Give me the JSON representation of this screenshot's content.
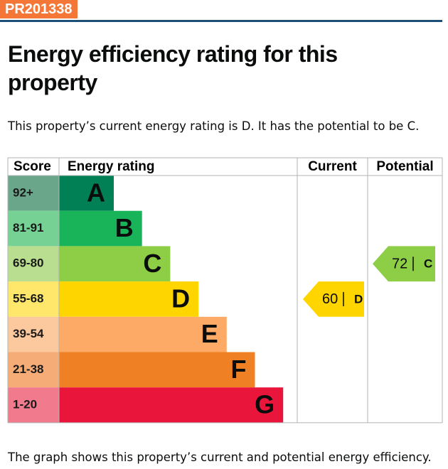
{
  "chart_data": {
    "type": "epc",
    "reference": "PR201338",
    "title": "Energy efficiency rating for this property",
    "subtitle": "This property’s current energy rating is D. It has the potential to be C.",
    "columns": [
      "Score",
      "Energy rating",
      "Current",
      "Potential"
    ],
    "bands": [
      {
        "score": "92+",
        "letter": "A",
        "color": "#008054",
        "score_color": "#6aa78a"
      },
      {
        "score": "81-91",
        "letter": "B",
        "color": "#19b459",
        "score_color": "#75d194"
      },
      {
        "score": "69-80",
        "letter": "C",
        "color": "#8dce46",
        "score_color": "#b9de8f"
      },
      {
        "score": "55-68",
        "letter": "D",
        "color": "#ffd500",
        "score_color": "#fee76b"
      },
      {
        "score": "39-54",
        "letter": "E",
        "color": "#fcaa65",
        "score_color": "#fcc89e"
      },
      {
        "score": "21-38",
        "letter": "F",
        "color": "#ef8023",
        "score_color": "#f5ac76"
      },
      {
        "score": "1-20",
        "letter": "G",
        "color": "#e9153b",
        "score_color": "#f17b8d"
      }
    ],
    "current": {
      "score": 60,
      "rating": "D"
    },
    "potential": {
      "score": 72,
      "rating": "C"
    },
    "note": "The graph shows this property’s current and potential energy efficiency."
  }
}
